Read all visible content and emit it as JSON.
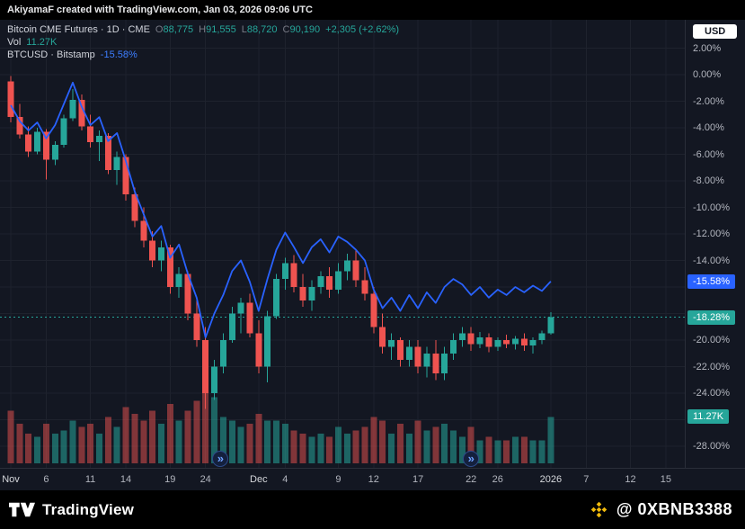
{
  "topbar": {
    "text": "AkiyamaF created with TradingView.com, Jan 03, 2026 09:06 UTC"
  },
  "legend": {
    "title": "Bitcoin CME Futures · 1D · CME",
    "ohlc": [
      {
        "k": "O",
        "v": "88,775"
      },
      {
        "k": "H",
        "v": "91,555"
      },
      {
        "k": "L",
        "v": "88,720"
      },
      {
        "k": "C",
        "v": "90,190"
      }
    ],
    "change": "+2,305 (+2.62%)",
    "vol_label": "Vol",
    "vol_value": "11.27K",
    "compare_symbol": "BTCUSD · Bitstamp",
    "compare_change": "-15.58%"
  },
  "axis": {
    "currency_button": "USD"
  },
  "footer": {
    "brand": "TradingView",
    "watermark": "@ 0XBNB3388"
  },
  "theme": {
    "background": "#131722",
    "panel": "#000000",
    "grid": "#1e222d",
    "separator": "#2a2e39",
    "axis_text": "#b2b5be",
    "up": "#26a69a",
    "down": "#ef5350",
    "vol_up": "rgba(38,166,154,0.55)",
    "vol_down": "rgba(239,83,80,0.50)",
    "compare": "#2962ff",
    "label_blue": "#2962ff",
    "label_teal": "#26a69a",
    "usd_button_bg": "#ffffff"
  },
  "chart_data": {
    "type": "candlestick",
    "title": "Bitcoin CME Futures",
    "timeframe": "1D",
    "exchange": "CME",
    "x_unit": "day",
    "yaxis": {
      "unit": "%",
      "min": -29.6,
      "max": 3.4,
      "grid_step": 2,
      "ticks": [
        {
          "p": 2,
          "label": "2.00%"
        },
        {
          "p": 0,
          "label": "0.00%"
        },
        {
          "p": -2,
          "label": "-2.00%"
        },
        {
          "p": -4,
          "label": "-4.00%"
        },
        {
          "p": -6,
          "label": "-6.00%"
        },
        {
          "p": -8,
          "label": "-8.00%"
        },
        {
          "p": -10,
          "label": "-10.00%"
        },
        {
          "p": -12,
          "label": "-12.00%"
        },
        {
          "p": -14,
          "label": "-14.00%"
        },
        {
          "p": -16,
          "label": null
        },
        {
          "p": -18,
          "label": null
        },
        {
          "p": -20,
          "label": "-20.00%"
        },
        {
          "p": -22,
          "label": "-22.00%"
        },
        {
          "p": -24,
          "label": "-24.00%"
        },
        {
          "p": -26,
          "label": null
        },
        {
          "p": -28,
          "label": "-28.00%"
        }
      ]
    },
    "x_ticks": [
      {
        "i": 0,
        "label": "Nov",
        "major": true
      },
      {
        "i": 4,
        "label": "6"
      },
      {
        "i": 9,
        "label": "11"
      },
      {
        "i": 13,
        "label": "14"
      },
      {
        "i": 18,
        "label": "19"
      },
      {
        "i": 22,
        "label": "24"
      },
      {
        "i": 28,
        "label": "Dec",
        "major": true
      },
      {
        "i": 31,
        "label": "4"
      },
      {
        "i": 37,
        "label": "9"
      },
      {
        "i": 41,
        "label": "12"
      },
      {
        "i": 46,
        "label": "17"
      },
      {
        "i": 52,
        "label": "22"
      },
      {
        "i": 55,
        "label": "26"
      },
      {
        "i": 61,
        "label": "2026",
        "major": true
      },
      {
        "i": 65,
        "label": "7"
      },
      {
        "i": 70,
        "label": "12"
      },
      {
        "i": 74,
        "label": "15"
      }
    ],
    "candle_format": [
      "open_pct",
      "high_pct",
      "low_pct",
      "close_pct",
      "volume_k"
    ],
    "candles": [
      [
        -0.5,
        -0.1,
        -3.6,
        -3.2,
        12.8
      ],
      [
        -3.2,
        -2.2,
        -4.8,
        -4.5,
        9.6
      ],
      [
        -4.5,
        -3.9,
        -6.2,
        -5.8,
        7.2
      ],
      [
        -5.8,
        -4.0,
        -6.0,
        -4.3,
        6.4
      ],
      [
        -4.3,
        -4.1,
        -7.9,
        -6.4,
        9.6
      ],
      [
        -6.4,
        -5.0,
        -6.8,
        -5.3,
        7.2
      ],
      [
        -5.3,
        -3.0,
        -5.5,
        -3.3,
        8.0
      ],
      [
        -3.3,
        -1.1,
        -3.5,
        -1.9,
        10.4
      ],
      [
        -1.9,
        -1.5,
        -4.2,
        -3.9,
        8.8
      ],
      [
        -3.9,
        -3.0,
        -5.5,
        -5.1,
        9.6
      ],
      [
        -5.1,
        -4.2,
        -6.5,
        -4.6,
        7.2
      ],
      [
        -4.6,
        -4.4,
        -7.5,
        -7.2,
        11.2
      ],
      [
        -7.2,
        -5.8,
        -8.3,
        -6.2,
        8.8
      ],
      [
        -6.2,
        -6.0,
        -9.5,
        -9.0,
        13.6
      ],
      [
        -9.0,
        -8.5,
        -11.5,
        -11.0,
        12.0
      ],
      [
        -11.0,
        -10.0,
        -13.0,
        -12.5,
        10.4
      ],
      [
        -12.5,
        -11.8,
        -14.5,
        -14.0,
        12.8
      ],
      [
        -14.0,
        -12.5,
        -14.8,
        -13.0,
        9.6
      ],
      [
        -13.0,
        -12.8,
        -16.5,
        -16.0,
        14.4
      ],
      [
        -16.0,
        -14.5,
        -16.8,
        -15.0,
        10.4
      ],
      [
        -15.0,
        -14.8,
        -18.5,
        -18.0,
        12.8
      ],
      [
        -18.0,
        -17.0,
        -20.5,
        -20.0,
        15.2
      ],
      [
        -20.0,
        -19.0,
        -25.2,
        -24.0,
        19.2
      ],
      [
        -24.0,
        -21.5,
        -24.5,
        -22.0,
        16.0
      ],
      [
        -22.0,
        -19.5,
        -22.5,
        -20.0,
        11.2
      ],
      [
        -20.0,
        -17.5,
        -20.2,
        -18.0,
        10.4
      ],
      [
        -18.0,
        -16.8,
        -19.5,
        -17.2,
        8.8
      ],
      [
        -17.2,
        -16.5,
        -19.8,
        -19.5,
        9.6
      ],
      [
        -19.5,
        -18.5,
        -22.5,
        -22.0,
        12.0
      ],
      [
        -22.0,
        -17.8,
        -23.2,
        -18.2,
        10.4
      ],
      [
        -18.2,
        -15.0,
        -18.4,
        -15.4,
        10.4
      ],
      [
        -15.4,
        -13.8,
        -16.2,
        -14.2,
        9.6
      ],
      [
        -14.2,
        -13.6,
        -16.4,
        -16.0,
        8.0
      ],
      [
        -16.0,
        -15.0,
        -17.5,
        -17.0,
        7.2
      ],
      [
        -17.0,
        -15.5,
        -17.8,
        -16.0,
        6.4
      ],
      [
        -16.0,
        -14.8,
        -16.5,
        -15.2,
        7.2
      ],
      [
        -15.2,
        -14.5,
        -16.8,
        -16.2,
        6.4
      ],
      [
        -16.2,
        -14.2,
        -16.5,
        -14.8,
        8.8
      ],
      [
        -14.8,
        -13.5,
        -15.5,
        -14.0,
        7.2
      ],
      [
        -14.0,
        -13.2,
        -16.0,
        -15.5,
        8.0
      ],
      [
        -15.5,
        -14.5,
        -17.0,
        -16.5,
        8.8
      ],
      [
        -16.5,
        -16.0,
        -19.5,
        -19.0,
        11.2
      ],
      [
        -19.0,
        -18.0,
        -21.0,
        -20.5,
        10.4
      ],
      [
        -20.5,
        -19.5,
        -21.5,
        -20.0,
        7.2
      ],
      [
        -20.0,
        -19.8,
        -22.0,
        -21.5,
        9.6
      ],
      [
        -21.5,
        -20.0,
        -22.0,
        -20.5,
        7.2
      ],
      [
        -20.5,
        -20.0,
        -22.5,
        -22.0,
        10.4
      ],
      [
        -22.0,
        -20.5,
        -22.8,
        -21.0,
        8.0
      ],
      [
        -21.0,
        -20.0,
        -23.0,
        -22.5,
        8.8
      ],
      [
        -22.5,
        -20.5,
        -23.0,
        -21.0,
        9.6
      ],
      [
        -21.0,
        -19.5,
        -21.5,
        -20.0,
        8.0
      ],
      [
        -20.0,
        -19.0,
        -20.5,
        -19.5,
        6.4
      ],
      [
        -19.5,
        -19.0,
        -20.8,
        -20.3,
        8.8
      ],
      [
        -20.3,
        -19.4,
        -20.6,
        -19.8,
        5.6
      ],
      [
        -19.8,
        -19.5,
        -20.9,
        -20.5,
        6.4
      ],
      [
        -20.5,
        -19.8,
        -20.8,
        -20.0,
        5.6
      ],
      [
        -20.0,
        -19.6,
        -20.6,
        -20.3,
        5.6
      ],
      [
        -20.3,
        -19.7,
        -20.7,
        -19.9,
        6.4
      ],
      [
        -19.9,
        -19.5,
        -20.8,
        -20.4,
        6.4
      ],
      [
        -20.4,
        -19.8,
        -21.0,
        -20.0,
        5.6
      ],
      [
        -20.0,
        -19.3,
        -20.3,
        -19.5,
        5.6
      ],
      [
        -19.5,
        -17.9,
        -19.6,
        -18.28,
        11.27
      ]
    ],
    "compare_series_name": "BTCUSD Bitstamp",
    "compare_line": [
      -2.3,
      -3.5,
      -4.2,
      -3.6,
      -4.8,
      -3.8,
      -2.2,
      -0.6,
      -2.4,
      -3.8,
      -3.2,
      -5.0,
      -4.4,
      -6.5,
      -8.8,
      -10.5,
      -12.2,
      -11.4,
      -13.8,
      -12.8,
      -15.0,
      -16.8,
      -19.8,
      -18.0,
      -16.6,
      -14.8,
      -14.0,
      -15.6,
      -17.8,
      -15.4,
      -13.2,
      -11.9,
      -13.0,
      -14.2,
      -13.0,
      -12.4,
      -13.4,
      -12.2,
      -12.6,
      -13.2,
      -14.0,
      -16.2,
      -17.6,
      -16.8,
      -17.8,
      -16.6,
      -17.6,
      -16.4,
      -17.2,
      -16.0,
      -15.4,
      -15.8,
      -16.6,
      -16.0,
      -16.8,
      -16.2,
      -16.6,
      -16.0,
      -16.4,
      -15.9,
      -16.3,
      -15.58
    ],
    "price_labels": {
      "compare": {
        "value": -15.58,
        "label": "-15.58%"
      },
      "close": {
        "value": -18.28,
        "label": "-18.28%"
      },
      "volume": {
        "label": "11.27K"
      }
    },
    "gap_markers": [
      23.7,
      52
    ]
  }
}
